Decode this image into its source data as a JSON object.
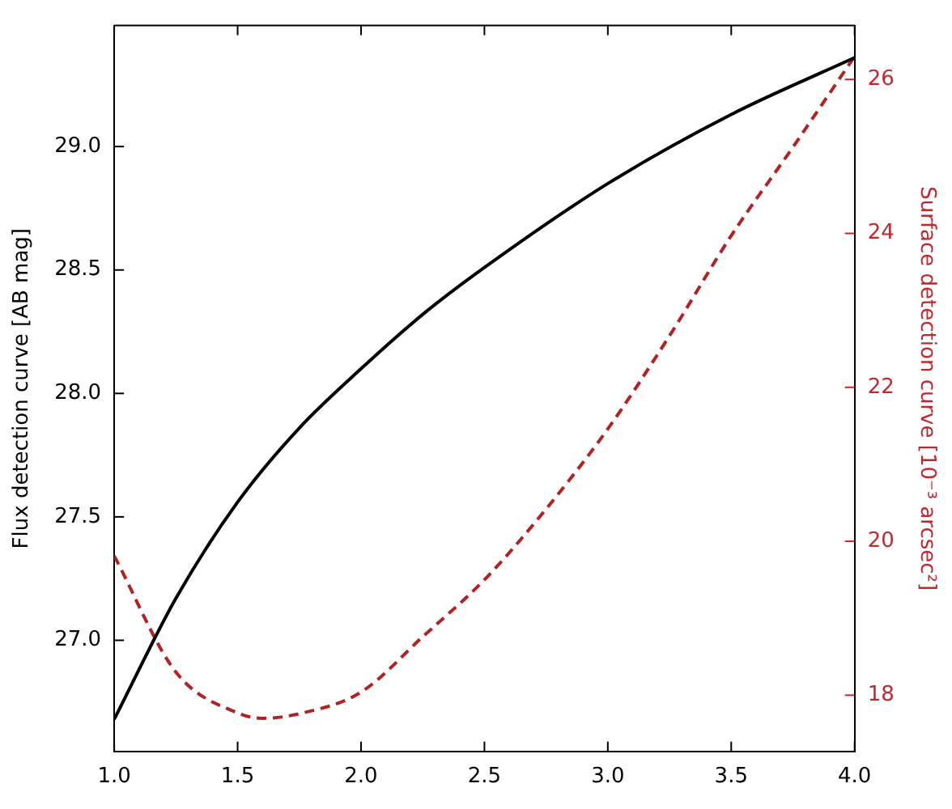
{
  "chart_data": {
    "type": "line",
    "xlim": [
      1.0,
      4.0
    ],
    "xticks": [
      {
        "value": 1.0,
        "label": "1.0"
      },
      {
        "value": 1.5,
        "label": "1.5"
      },
      {
        "value": 2.0,
        "label": "2.0"
      },
      {
        "value": 2.5,
        "label": "2.5"
      },
      {
        "value": 3.0,
        "label": "3.0"
      },
      {
        "value": 3.5,
        "label": "3.5"
      },
      {
        "value": 4.0,
        "label": "4.0"
      }
    ],
    "ylabel": "Flux detection curve [AB mag]",
    "ylim": [
      26.55,
      29.49
    ],
    "yticks": [
      {
        "value": 27.0,
        "label": "27.0"
      },
      {
        "value": 27.5,
        "label": "27.5"
      },
      {
        "value": 28.0,
        "label": "28.0"
      },
      {
        "value": 28.5,
        "label": "28.5"
      },
      {
        "value": 29.0,
        "label": "29.0"
      }
    ],
    "y2label": "Surface detection curve [10⁻³ arcsec²]",
    "y2lim": [
      17.27,
      26.7
    ],
    "y2ticks": [
      18,
      20,
      22,
      24,
      26
    ],
    "grid": false,
    "legend": false,
    "marker": "none",
    "series": [
      {
        "color": "#000000",
        "line_style": "solid",
        "x": [
          1.0,
          1.25,
          1.5,
          1.75,
          2.0,
          2.25,
          2.5,
          3.0,
          3.5,
          4.0
        ],
        "values": [
          26.68,
          27.17,
          27.56,
          27.86,
          28.1,
          28.32,
          28.51,
          28.85,
          29.13,
          29.36
        ]
      },
      {
        "color": "#b22222",
        "axis": "y2",
        "line_style": "dashed",
        "x": [
          1.0,
          1.25,
          1.5,
          1.6,
          1.75,
          2.0,
          2.25,
          2.5,
          2.75,
          3.0,
          3.25,
          3.5,
          3.75,
          4.0
        ],
        "values": [
          19.81,
          18.3,
          17.77,
          17.7,
          17.76,
          18.04,
          18.76,
          19.5,
          20.42,
          21.46,
          22.67,
          23.97,
          25.12,
          26.3
        ]
      }
    ]
  }
}
